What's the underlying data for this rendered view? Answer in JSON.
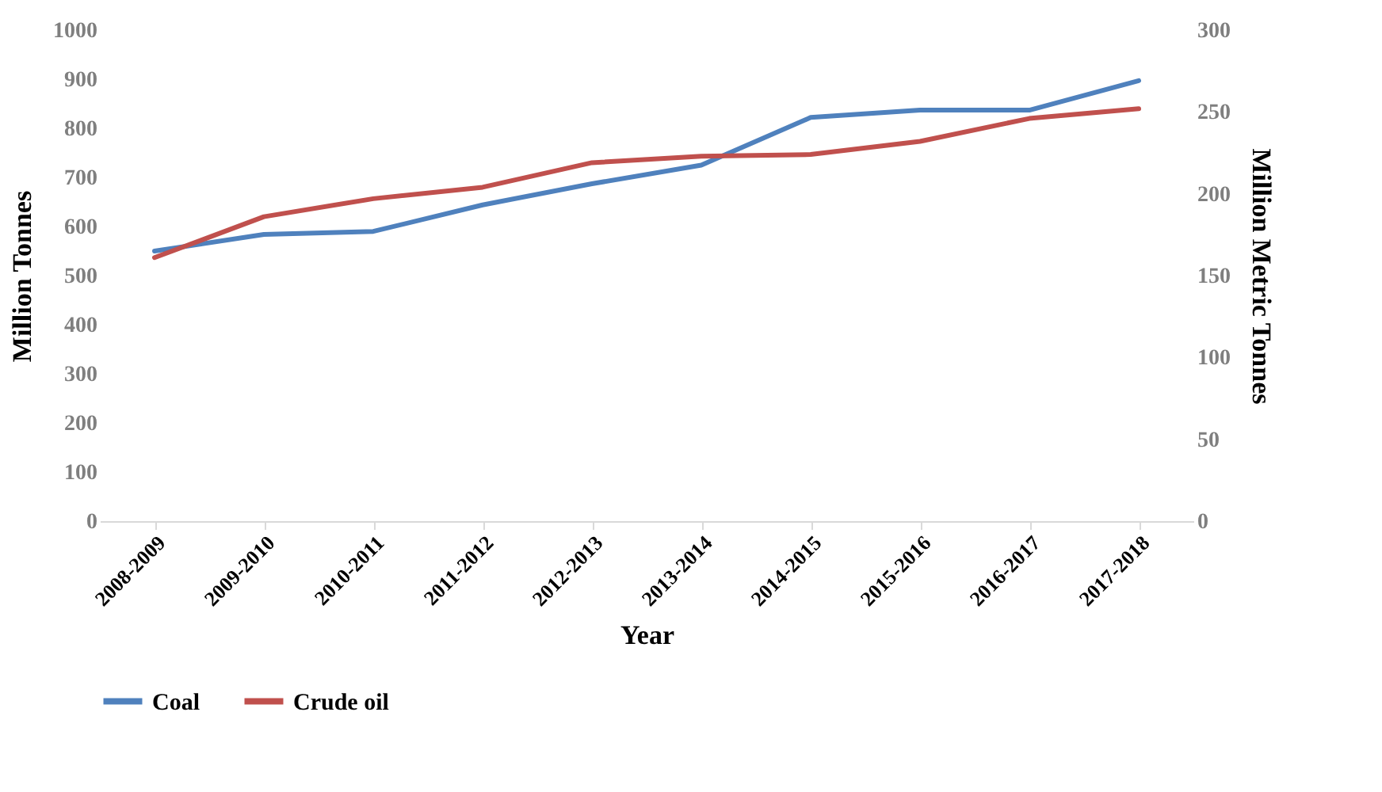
{
  "chart_data": {
    "type": "line",
    "xlabel": "Year",
    "ylabel": "Million Tonnes",
    "y2label": "Million Metric Tonnes",
    "categories": [
      "2008-2009",
      "2009-2010",
      "2010-2011",
      "2011-2012",
      "2012-2013",
      "2013-2014",
      "2014-2015",
      "2015-2016",
      "2016-2017",
      "2017-2018"
    ],
    "series": [
      {
        "name": "Coal",
        "color": "#4f81bd",
        "values": [
          550,
          584,
          590,
          644,
          687,
          725,
          822,
          837,
          837,
          897
        ]
      },
      {
        "name": "Crude oil",
        "color": "#c0504d",
        "axis": "y2",
        "values": [
          161,
          186,
          197,
          204,
          219,
          223,
          224,
          232,
          246,
          252
        ]
      }
    ],
    "ylim": [
      0,
      1000
    ],
    "yticks": [
      0,
      100,
      200,
      300,
      400,
      500,
      600,
      700,
      800,
      900,
      1000
    ],
    "y2lim": [
      0,
      300
    ],
    "y2ticks": [
      0,
      50,
      100,
      150,
      200,
      250,
      300
    ],
    "grid": false,
    "legend": "bottom",
    "marker": "none",
    "line_style": "solid"
  }
}
